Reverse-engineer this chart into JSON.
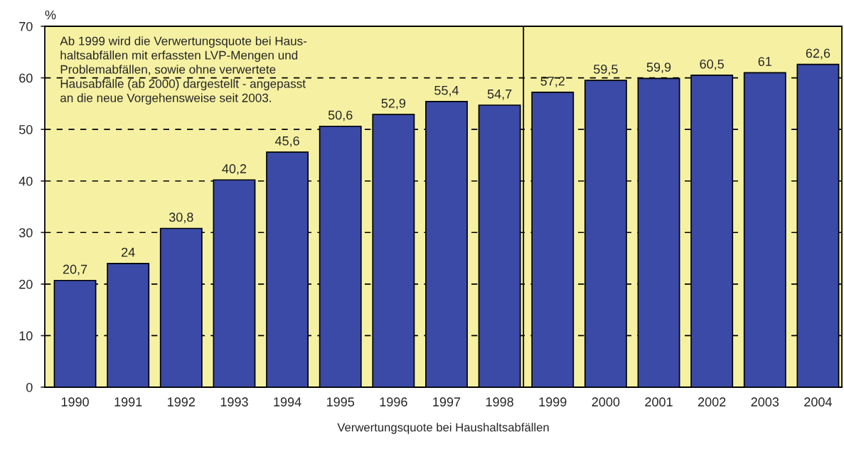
{
  "chart_data": {
    "type": "bar",
    "x": [
      1990,
      1991,
      1992,
      1993,
      1994,
      1995,
      1996,
      1997,
      1998,
      1999,
      2000,
      2001,
      2002,
      2003,
      2004
    ],
    "values": [
      20.7,
      24,
      30.8,
      40.2,
      45.6,
      50.6,
      52.9,
      55.4,
      54.7,
      57.2,
      59.5,
      59.9,
      60.5,
      61,
      62.6
    ],
    "value_labels": [
      "20,7",
      "24",
      "30,8",
      "40,2",
      "45,6",
      "50,6",
      "52,9",
      "55,4",
      "54,7",
      "57,2",
      "59,5",
      "59,9",
      "60,5",
      "61",
      "62,6"
    ],
    "color": "#3a4aa6",
    "xlim": [
      1989.43,
      2004.45
    ],
    "xticks": [
      1990,
      1991,
      1992,
      1993,
      1994,
      1995,
      1996,
      1997,
      1998,
      1999,
      2000,
      2001,
      2002,
      2003,
      2004
    ],
    "ylim": [
      0,
      70
    ],
    "yticks": [
      0,
      10,
      20,
      30,
      40,
      50,
      60,
      70
    ],
    "ylabel": "%",
    "xlabel": "Verwertungsquote bei Haushaltsabfällen",
    "annotations": [
      "Ab 1999 wird die Verwertungsquote bei Haus-\nhaltsabfällen mit erfassten LVP-Mengen und\nProblemabfällen, sowie ohne verwertete\nHausabfälle (ab 2000) dargestellt - angepasst\nan die neue Vorgehensweise seit 2003."
    ],
    "grid": "y",
    "ref_lines": [
      {
        "axis": "x",
        "value": 1998.45,
        "color": "#000000"
      }
    ],
    "bands": [
      {
        "axis": "y",
        "from": 0,
        "to": 70,
        "color": "#f6f1a2"
      }
    ]
  }
}
